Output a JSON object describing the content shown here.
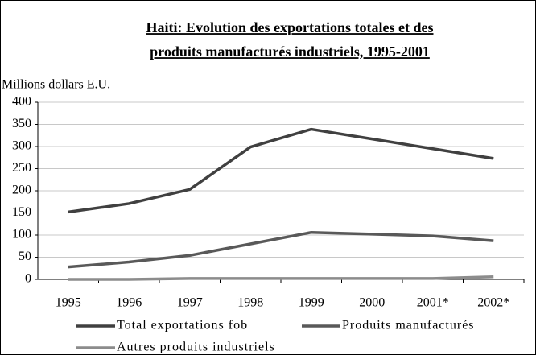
{
  "chart_data": {
    "type": "line",
    "title": [
      "Haiti:  Evolution des exportations totales et des",
      "produits manufacturés industriels, 1995-2001"
    ],
    "y_label": "Millions dollars E.U.",
    "categories": [
      "1995",
      "1996",
      "1997",
      "1998",
      "1999",
      "2000",
      "2001*",
      "2002*"
    ],
    "series": [
      {
        "name": "Total exportations fob",
        "color": "#404040",
        "values": [
          152,
          171,
          203,
          299,
          339,
          317,
          295,
          273
        ]
      },
      {
        "name": "Produits manufacturés",
        "color": "#595959",
        "values": [
          28,
          39,
          54,
          80,
          106,
          102,
          98,
          87
        ]
      },
      {
        "name": "Autres produits industriels",
        "color": "#8c8c8c",
        "values": [
          0,
          0,
          2,
          2,
          2,
          2,
          2,
          6
        ]
      }
    ],
    "ylim": [
      0,
      400
    ],
    "yticks": [
      0,
      50,
      100,
      150,
      200,
      250,
      300,
      350,
      400
    ],
    "grid": true
  }
}
